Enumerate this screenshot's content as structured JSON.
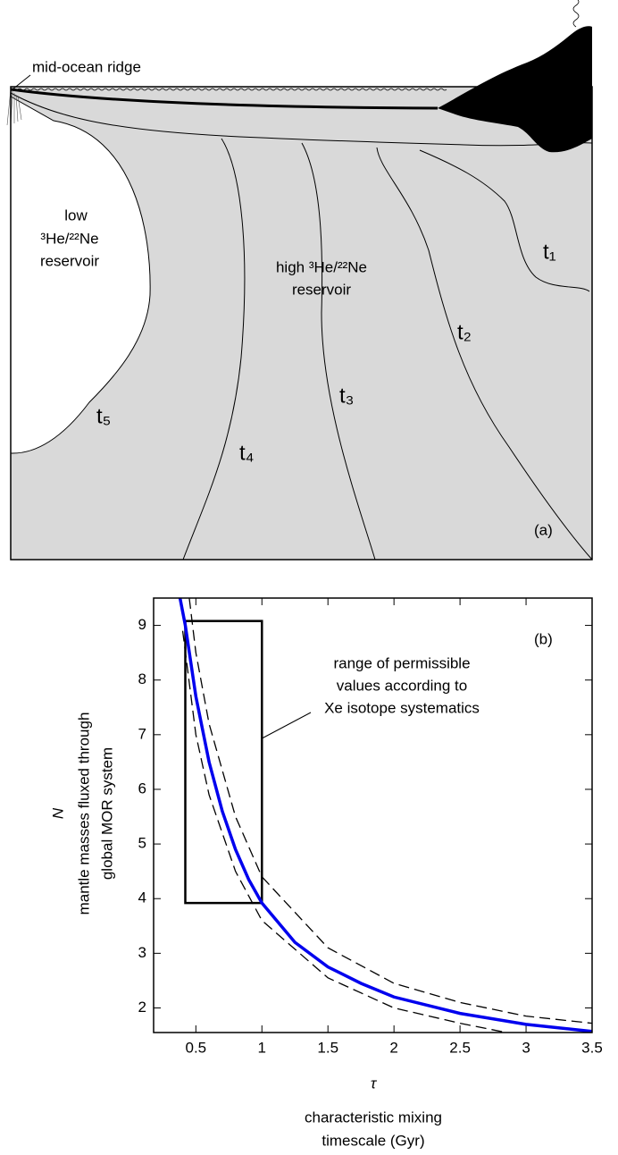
{
  "diagram": {
    "ridge_label": "mid-ocean ridge",
    "low_reservoir": [
      "low",
      "³He/²²Ne",
      "reservoir"
    ],
    "high_reservoir": [
      "high ³He/²²Ne",
      "reservoir"
    ],
    "time_labels": [
      "t₁",
      "t₂",
      "t₃",
      "t₄",
      "t₅"
    ],
    "panel_label": "(a)"
  },
  "chart_data": {
    "type": "line",
    "panel_label": "(b)",
    "y_label": [
      "N",
      "mantle masses fluxed through",
      "global MOR system"
    ],
    "x_label": [
      "τ",
      "characteristic mixing",
      "timescale (Gyr)"
    ],
    "annotation": [
      "range of permissible",
      "values according to",
      "Xe isotope systematics"
    ],
    "box": {
      "x": [
        0.42,
        1.0
      ],
      "y": [
        3.92,
        9.08
      ]
    },
    "xlim": [
      0.18,
      3.5
    ],
    "ylim": [
      1.55,
      9.5
    ],
    "xticks": [
      0.5,
      1,
      1.5,
      2,
      2.5,
      3,
      3.5
    ],
    "yticks": [
      2,
      3,
      4,
      5,
      6,
      7,
      8,
      9
    ],
    "series": [
      {
        "color": "#0000ee",
        "dash": false,
        "x": [
          0.38,
          0.42,
          0.5,
          0.6,
          0.7,
          0.8,
          0.9,
          1.0,
          1.25,
          1.5,
          1.75,
          2.0,
          2.5,
          3.0,
          3.5
        ],
        "values": [
          9.5,
          9.0,
          7.7,
          6.5,
          5.6,
          4.9,
          4.35,
          3.92,
          3.2,
          2.75,
          2.45,
          2.2,
          1.9,
          1.7,
          1.57
        ]
      },
      {
        "color": "#000000",
        "dash": true,
        "x": [
          0.45,
          0.5,
          0.6,
          0.8,
          1.0,
          1.5,
          2.0,
          2.5,
          3.0,
          3.5
        ],
        "values": [
          9.5,
          8.5,
          7.2,
          5.5,
          4.4,
          3.1,
          2.45,
          2.1,
          1.85,
          1.72
        ]
      },
      {
        "color": "#000000",
        "dash": true,
        "x": [
          0.4,
          0.5,
          0.6,
          0.8,
          1.0,
          1.5,
          2.0,
          2.5,
          2.85
        ],
        "values": [
          8.9,
          7.0,
          5.9,
          4.5,
          3.6,
          2.55,
          2.0,
          1.72,
          1.55
        ]
      }
    ]
  }
}
